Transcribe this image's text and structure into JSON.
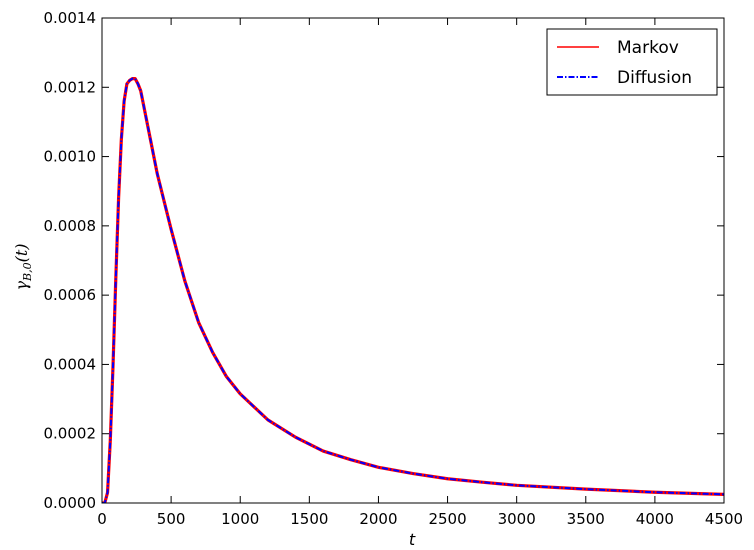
{
  "chart_data": {
    "type": "line",
    "title": "",
    "xlabel": "t",
    "ylabel": "γ_{B,0}(t)",
    "ylabel_parts": {
      "base": "γ",
      "sub": "B,0",
      "tail": "(t)"
    },
    "xlim": [
      0,
      4500
    ],
    "ylim": [
      0,
      0.0014
    ],
    "x_ticks": [
      0,
      500,
      1000,
      1500,
      2000,
      2500,
      3000,
      3500,
      4000,
      4500
    ],
    "x_tick_labels": [
      "0",
      "500",
      "1000",
      "1500",
      "2000",
      "2500",
      "3000",
      "3500",
      "4000",
      "4500"
    ],
    "y_ticks": [
      0,
      0.0002,
      0.0004,
      0.0006,
      0.0008,
      0.001,
      0.0012,
      0.0014
    ],
    "y_tick_labels": [
      "0.0000",
      "0.0002",
      "0.0004",
      "0.0006",
      "0.0008",
      "0.0010",
      "0.0012",
      "0.0014"
    ],
    "grid": false,
    "legend_position": "top-right",
    "series": [
      {
        "name": "Markov",
        "color": "#ff0000",
        "style": "solid",
        "x": [
          0,
          20,
          40,
          60,
          80,
          100,
          120,
          140,
          160,
          180,
          200,
          220,
          240,
          260,
          280,
          300,
          350,
          400,
          450,
          500,
          600,
          700,
          800,
          900,
          1000,
          1200,
          1400,
          1600,
          1800,
          2000,
          2250,
          2500,
          2750,
          3000,
          3500,
          4000,
          4500
        ],
        "y": [
          0,
          0,
          3e-05,
          0.00018,
          0.0004,
          0.00065,
          0.00088,
          0.00105,
          0.00116,
          0.00121,
          0.00122,
          0.001225,
          0.001225,
          0.00121,
          0.00119,
          0.00115,
          0.00105,
          0.00095,
          0.00087,
          0.00079,
          0.00064,
          0.00052,
          0.000435,
          0.000365,
          0.000315,
          0.00024,
          0.00019,
          0.00015,
          0.000125,
          0.000103,
          8.5e-05,
          7e-05,
          6e-05,
          5.1e-05,
          4e-05,
          3.1e-05,
          2.5e-05
        ]
      },
      {
        "name": "Diffusion",
        "color": "#0000ff",
        "style": "dashdot",
        "x": [
          0,
          20,
          40,
          60,
          80,
          100,
          120,
          140,
          160,
          180,
          200,
          220,
          240,
          260,
          280,
          300,
          350,
          400,
          450,
          500,
          600,
          700,
          800,
          900,
          1000,
          1200,
          1400,
          1600,
          1800,
          2000,
          2250,
          2500,
          2750,
          3000,
          3500,
          4000,
          4500
        ],
        "y": [
          0,
          0,
          3e-05,
          0.00018,
          0.0004,
          0.00065,
          0.00088,
          0.00105,
          0.00116,
          0.00121,
          0.00122,
          0.001225,
          0.001225,
          0.00121,
          0.00119,
          0.00115,
          0.00105,
          0.00095,
          0.00087,
          0.00079,
          0.00064,
          0.00052,
          0.000435,
          0.000365,
          0.000315,
          0.00024,
          0.00019,
          0.00015,
          0.000125,
          0.000103,
          8.5e-05,
          7e-05,
          6e-05,
          5.1e-05,
          4e-05,
          3.1e-05,
          2.5e-05
        ]
      }
    ]
  }
}
